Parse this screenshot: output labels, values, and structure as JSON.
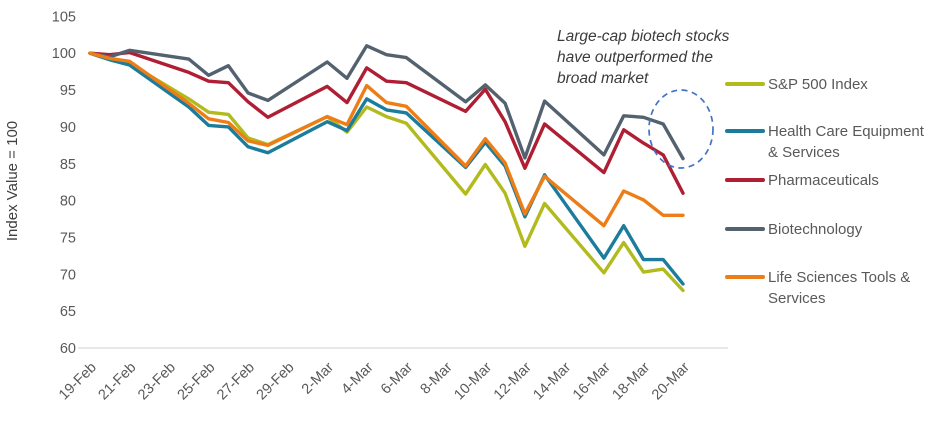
{
  "chart_data": {
    "type": "line",
    "ylabel": "Index Value = 100",
    "annotation": "Large-cap biotech stocks have outperformed the broad market",
    "ylim": [
      60,
      105
    ],
    "y_ticks": [
      105,
      100,
      95,
      90,
      85,
      80,
      75,
      70,
      65,
      60
    ],
    "x_tick_labels": [
      "19-Feb",
      "21-Feb",
      "23-Feb",
      "25-Feb",
      "27-Feb",
      "29-Feb",
      "2-Mar",
      "4-Mar",
      "6-Mar",
      "8-Mar",
      "10-Mar",
      "12-Mar",
      "14-Mar",
      "16-Mar",
      "18-Mar",
      "20-Mar"
    ],
    "x_tick_days": [
      0,
      2,
      4,
      6,
      8,
      10,
      12,
      14,
      16,
      18,
      20,
      22,
      24,
      26,
      28,
      30
    ],
    "point_dates": [
      "19-Feb",
      "20-Feb",
      "21-Feb",
      "24-Feb",
      "25-Feb",
      "26-Feb",
      "27-Feb",
      "28-Feb",
      "2-Mar",
      "3-Mar",
      "4-Mar",
      "5-Mar",
      "6-Mar",
      "9-Mar",
      "10-Mar",
      "11-Mar",
      "12-Mar",
      "13-Mar",
      "16-Mar",
      "17-Mar",
      "18-Mar",
      "19-Mar",
      "20-Mar"
    ],
    "point_days": [
      0,
      1,
      2,
      5,
      6,
      7,
      8,
      9,
      12,
      13,
      14,
      15,
      16,
      19,
      20,
      21,
      22,
      23,
      26,
      27,
      28,
      29,
      30
    ],
    "series": [
      {
        "name": "S&P 500 Index",
        "color": "#b2bb1e",
        "values": [
          100,
          99.2,
          98.6,
          93.8,
          92.0,
          91.7,
          88.5,
          87.6,
          91.4,
          89.3,
          92.7,
          91.4,
          90.5,
          80.9,
          84.9,
          81.0,
          73.8,
          79.6,
          70.2,
          74.3,
          70.3,
          70.7,
          67.8
        ]
      },
      {
        "name": "Health Care Equipment & Services",
        "color": "#1c7c9c",
        "values": [
          100,
          99.1,
          98.4,
          92.7,
          90.2,
          90.0,
          87.3,
          86.5,
          90.7,
          89.5,
          93.8,
          92.3,
          91.9,
          84.5,
          87.9,
          84.7,
          77.8,
          83.5,
          72.2,
          76.6,
          72.0,
          72.0,
          68.7
        ]
      },
      {
        "name": "Pharmaceuticals",
        "color": "#b01e33",
        "values": [
          100,
          99.8,
          100.1,
          97.4,
          96.2,
          96.0,
          93.4,
          91.3,
          95.5,
          93.3,
          98.0,
          96.2,
          96.0,
          92.1,
          95.1,
          90.7,
          84.4,
          90.4,
          83.8,
          89.6,
          87.8,
          86.2,
          81.0
        ]
      },
      {
        "name": "Biotechnology",
        "color": "#54626f",
        "values": [
          100,
          99.5,
          100.4,
          99.2,
          97.0,
          98.3,
          94.6,
          93.6,
          98.8,
          96.6,
          101.0,
          99.8,
          99.4,
          93.4,
          95.7,
          93.2,
          85.8,
          93.5,
          86.2,
          91.5,
          91.3,
          90.4,
          85.7
        ]
      },
      {
        "name": "Life Sciences Tools & Services",
        "color": "#ed7d17",
        "values": [
          100,
          99.3,
          98.9,
          93.2,
          91.1,
          90.6,
          88.1,
          87.5,
          91.4,
          90.3,
          95.6,
          93.3,
          92.8,
          84.7,
          88.4,
          85.1,
          78.2,
          83.3,
          76.6,
          81.3,
          80.1,
          78.0,
          78.0
        ]
      }
    ],
    "legend_position": "right",
    "grid": false,
    "highlight_ellipse": {
      "target": "Biotechnology end",
      "color": "#4472c4"
    }
  },
  "style_colors": {
    "axis_line": "#d9d9d9",
    "tick_text": "#595959",
    "annotation_text": "#3b3b3b"
  }
}
